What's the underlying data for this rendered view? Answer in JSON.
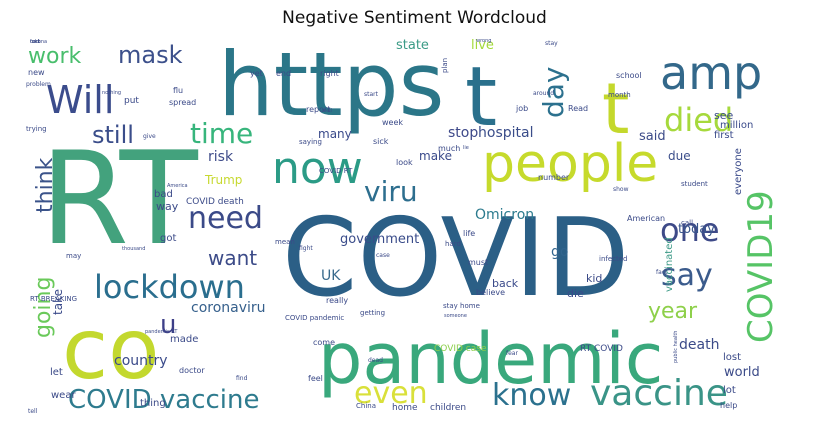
{
  "chart_data": {
    "type": "wordcloud",
    "title": "Negative Sentiment Wordcloud",
    "words": [
      {
        "text": "RT",
        "color": "#43a27d",
        "size": 128
      },
      {
        "text": "COVID",
        "color": "#2b5f86",
        "size": 108
      },
      {
        "text": "https",
        "color": "#2b7688",
        "size": 88
      },
      {
        "text": "co",
        "color": "#c3d82e",
        "size": 84
      },
      {
        "text": "pandemic",
        "color": "#39a87c",
        "size": 70
      },
      {
        "text": "t",
        "color": "#2a708c",
        "size": 82
      },
      {
        "text": "people",
        "color": "#c6da2c",
        "size": 52
      },
      {
        "text": "amp",
        "color": "#33688a",
        "size": 46
      },
      {
        "text": "t",
        "color": "#c4d82c",
        "size": 70
      },
      {
        "text": "now",
        "color": "#2b9b86",
        "size": 44
      },
      {
        "text": "vaccine",
        "color": "#3a9487",
        "size": 36
      },
      {
        "text": "Will",
        "color": "#3b4c8c",
        "size": 38
      },
      {
        "text": "lockdown",
        "color": "#2a6e8e",
        "size": 32
      },
      {
        "text": "COVID19",
        "color": "#56c466",
        "size": 34
      },
      {
        "text": "died",
        "color": "#a6d93c",
        "size": 32
      },
      {
        "text": "know",
        "color": "#2b718e",
        "size": 30
      },
      {
        "text": "one",
        "color": "#3e4a88",
        "size": 32
      },
      {
        "text": "say",
        "color": "#3b5b8c",
        "size": 30
      },
      {
        "text": "COVID vaccine",
        "color": "#2e7b8e",
        "size": 26
      },
      {
        "text": "even",
        "color": "#d9e03a",
        "size": 30
      },
      {
        "text": "viru",
        "color": "#2d6e8e",
        "size": 28
      },
      {
        "text": "need",
        "color": "#3b4a88",
        "size": 30
      },
      {
        "text": "time",
        "color": "#37b57c",
        "size": 28
      },
      {
        "text": "day",
        "color": "#2c718e",
        "size": 28
      },
      {
        "text": "mask",
        "color": "#3c508b",
        "size": 24
      },
      {
        "text": "work",
        "color": "#48be6c",
        "size": 22
      },
      {
        "text": "still",
        "color": "#3a4d8a",
        "size": 24
      },
      {
        "text": "think",
        "color": "#3b538a",
        "size": 22
      },
      {
        "text": "going",
        "color": "#6ac95a",
        "size": 22
      },
      {
        "text": "u",
        "color": "#3d3f88",
        "size": 26
      },
      {
        "text": "want",
        "color": "#3c4b88",
        "size": 20
      },
      {
        "text": "year",
        "color": "#8ed04a",
        "size": 22
      },
      {
        "text": "coronaviru",
        "color": "#36608c",
        "size": 14
      },
      {
        "text": "country",
        "color": "#3a4a8a",
        "size": 14
      },
      {
        "text": "Omicron",
        "color": "#2c7b8e",
        "size": 14
      },
      {
        "text": "government",
        "color": "#3a4c8a",
        "size": 13
      },
      {
        "text": "UK",
        "color": "#396a8c",
        "size": 14
      },
      {
        "text": "go",
        "color": "#31648d",
        "size": 14
      },
      {
        "text": "death",
        "color": "#3b4a88",
        "size": 14
      },
      {
        "text": "world",
        "color": "#3b4a88",
        "size": 13
      },
      {
        "text": "hospital",
        "color": "#3a4d8a",
        "size": 14
      },
      {
        "text": "stop",
        "color": "#3d4889",
        "size": 14
      },
      {
        "text": "state",
        "color": "#3b9b86",
        "size": 13
      },
      {
        "text": "live",
        "color": "#a3d93a",
        "size": 13
      },
      {
        "text": "today",
        "color": "#39568c",
        "size": 13
      },
      {
        "text": "risk",
        "color": "#3f4c8a",
        "size": 14
      },
      {
        "text": "Trump",
        "color": "#c7d930",
        "size": 12
      },
      {
        "text": "make",
        "color": "#3a4a8a",
        "size": 12
      },
      {
        "text": "many",
        "color": "#3a4a8a",
        "size": 12
      },
      {
        "text": "said",
        "color": "#3b4a88",
        "size": 13
      },
      {
        "text": "due",
        "color": "#3a4d8a",
        "size": 12
      },
      {
        "text": "see",
        "color": "#3a4a8a",
        "size": 11
      },
      {
        "text": "first",
        "color": "#3a4a8a",
        "size": 10
      },
      {
        "text": "million",
        "color": "#3a4a8a",
        "size": 10
      },
      {
        "text": "everyone",
        "color": "#3a4a8a",
        "size": 10
      },
      {
        "text": "vaccinated",
        "color": "#3d9a87",
        "size": 10
      },
      {
        "text": "kid",
        "color": "#3b4a88",
        "size": 11
      },
      {
        "text": "die",
        "color": "#3a4a8a",
        "size": 11
      },
      {
        "text": "back",
        "color": "#3a4a8a",
        "size": 11
      },
      {
        "text": "take",
        "color": "#3a4a8a",
        "size": 12
      },
      {
        "text": "way",
        "color": "#3b4a88",
        "size": 11
      },
      {
        "text": "got",
        "color": "#3b4a88",
        "size": 10
      },
      {
        "text": "bad",
        "color": "#3b4a88",
        "size": 10
      },
      {
        "text": "COVID death",
        "color": "#3b4a88",
        "size": 9
      },
      {
        "text": "RT COVID",
        "color": "#3b4a88",
        "size": 9
      },
      {
        "text": "COVID case",
        "color": "#8ccf4a",
        "size": 9
      },
      {
        "text": "thing",
        "color": "#3b4a88",
        "size": 10
      },
      {
        "text": "made",
        "color": "#3b4a88",
        "size": 10
      },
      {
        "text": "let",
        "color": "#3b4a88",
        "size": 10
      },
      {
        "text": "wear",
        "color": "#3b4a88",
        "size": 10
      },
      {
        "text": "lost",
        "color": "#3b4a88",
        "size": 10
      },
      {
        "text": "lot",
        "color": "#3b4a88",
        "size": 10
      },
      {
        "text": "help",
        "color": "#3b4a88",
        "size": 8
      },
      {
        "text": "home",
        "color": "#3b4a88",
        "size": 9
      },
      {
        "text": "children",
        "color": "#3b4a88",
        "size": 9
      },
      {
        "text": "school",
        "color": "#3b4a88",
        "size": 8
      },
      {
        "text": "right",
        "color": "#3b4a88",
        "size": 8
      },
      {
        "text": "end",
        "color": "#3b4a88",
        "size": 8
      },
      {
        "text": "yet",
        "color": "#3b4a88",
        "size": 8
      },
      {
        "text": "new",
        "color": "#3b4a88",
        "size": 8
      },
      {
        "text": "put",
        "color": "#3b4a88",
        "size": 9
      },
      {
        "text": "spread",
        "color": "#3b4a88",
        "size": 8
      },
      {
        "text": "report",
        "color": "#3b4a88",
        "size": 8
      },
      {
        "text": "job",
        "color": "#3b4a88",
        "size": 8
      },
      {
        "text": "Read",
        "color": "#3b4a88",
        "size": 8
      },
      {
        "text": "week",
        "color": "#3b4a88",
        "size": 8
      },
      {
        "text": "much",
        "color": "#3b4a88",
        "size": 8
      },
      {
        "text": "look",
        "color": "#3b4a88",
        "size": 8
      },
      {
        "text": "number",
        "color": "#3b4a88",
        "size": 8
      },
      {
        "text": "American",
        "color": "#3b4a88",
        "size": 8
      },
      {
        "text": "life",
        "color": "#3b4a88",
        "size": 8
      },
      {
        "text": "really",
        "color": "#3b4a88",
        "size": 8
      },
      {
        "text": "must",
        "color": "#3b4a88",
        "size": 8
      },
      {
        "text": "believe",
        "color": "#3b4a88",
        "size": 8
      },
      {
        "text": "come",
        "color": "#3b4a88",
        "size": 8
      },
      {
        "text": "feel",
        "color": "#3b4a88",
        "size": 8
      },
      {
        "text": "doctor",
        "color": "#3b4a88",
        "size": 8
      },
      {
        "text": "COVID pandemic",
        "color": "#3b4a88",
        "size": 7
      },
      {
        "text": "RT BREAKING",
        "color": "#3b4a88",
        "size": 7
      },
      {
        "text": "sick",
        "color": "#3b4a88",
        "size": 8
      },
      {
        "text": "saying",
        "color": "#3b4a88",
        "size": 7
      },
      {
        "text": "COVID RT",
        "color": "#3b4a88",
        "size": 7
      },
      {
        "text": "mean",
        "color": "#3b4a88",
        "size": 7
      },
      {
        "text": "getting",
        "color": "#3b4a88",
        "size": 7
      },
      {
        "text": "stay home",
        "color": "#3b4a88",
        "size": 7
      },
      {
        "text": "China",
        "color": "#3b4a88",
        "size": 7
      },
      {
        "text": "infected",
        "color": "#3b4a88",
        "size": 7
      },
      {
        "text": "flu",
        "color": "#3b4a88",
        "size": 8
      },
      {
        "text": "month",
        "color": "#3b4a88",
        "size": 7
      },
      {
        "text": "trying",
        "color": "#3b4a88",
        "size": 7
      },
      {
        "text": "plan",
        "color": "#3b4a88",
        "size": 7
      },
      {
        "text": "may",
        "color": "#3b4a88",
        "size": 7
      },
      {
        "text": "fight",
        "color": "#3b4a88",
        "size": 6
      },
      {
        "text": "hard",
        "color": "#3b4a88",
        "size": 7
      },
      {
        "text": "student",
        "color": "#3b4a88",
        "size": 7
      },
      {
        "text": "call",
        "color": "#3b4a88",
        "size": 7
      },
      {
        "text": "fact",
        "color": "#3b4a88",
        "size": 6
      },
      {
        "text": "tell",
        "color": "#3b4a88",
        "size": 6
      },
      {
        "text": "problem",
        "color": "#3b4a88",
        "size": 6
      },
      {
        "text": "public health",
        "color": "#3b4a88",
        "size": 5
      },
      {
        "text": "pandemic RT",
        "color": "#3b4a88",
        "size": 5
      },
      {
        "text": "thousand",
        "color": "#3b4a88",
        "size": 5
      },
      {
        "text": "someone",
        "color": "#3b4a88",
        "size": 5
      },
      {
        "text": "around",
        "color": "#3b4a88",
        "size": 6
      },
      {
        "text": "stay",
        "color": "#3b4a88",
        "size": 6
      },
      {
        "text": "start",
        "color": "#3b4a88",
        "size": 6
      },
      {
        "text": "nothing",
        "color": "#3b4a88",
        "size": 5
      },
      {
        "text": "give",
        "color": "#3b4a88",
        "size": 6
      },
      {
        "text": "dead",
        "color": "#3b4a88",
        "size": 6
      },
      {
        "text": "find",
        "color": "#3b4a88",
        "size": 6
      },
      {
        "text": "fear",
        "color": "#3b4a88",
        "size": 6
      },
      {
        "text": "case",
        "color": "#3b4a88",
        "size": 6
      },
      {
        "text": "show",
        "color": "#3b4a88",
        "size": 6
      },
      {
        "text": "wrong",
        "color": "#3b4a88",
        "size": 5
      },
      {
        "text": "America",
        "color": "#3b4a88",
        "size": 5
      },
      {
        "text": "well",
        "color": "#3b4a88",
        "size": 5
      },
      {
        "text": "lie",
        "color": "#3b4a88",
        "size": 5
      },
      {
        "text": "fuck",
        "color": "#3b4a88",
        "size": 5
      },
      {
        "text": "corona",
        "color": "#3b4a88",
        "size": 5
      },
      {
        "text": "told",
        "color": "#3b4a88",
        "size": 5
      }
    ]
  }
}
